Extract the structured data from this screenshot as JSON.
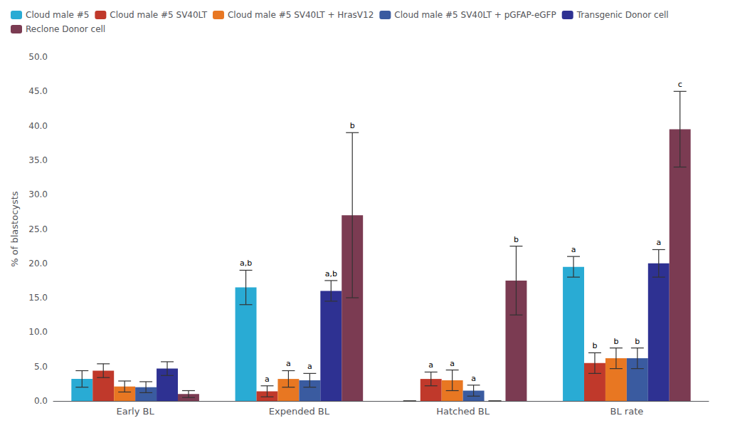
{
  "chart_data": {
    "type": "bar",
    "categories": [
      "Early BL",
      "Expended BL",
      "Hatched BL",
      "BL rate"
    ],
    "series": [
      {
        "name": "Cloud male #5",
        "color": "#29ABD4",
        "values": [
          3.2,
          16.5,
          0.0,
          19.5
        ],
        "errors": [
          1.2,
          2.5,
          0.0,
          1.5
        ],
        "annotations": [
          null,
          "a,b",
          null,
          "a"
        ]
      },
      {
        "name": "Cloud male #5 SV40LT",
        "color": "#C0392B",
        "values": [
          4.4,
          1.4,
          3.2,
          5.5
        ],
        "errors": [
          1.0,
          0.8,
          1.0,
          1.5
        ],
        "annotations": [
          null,
          "a",
          "a",
          "b"
        ]
      },
      {
        "name": "Cloud male #5 SV40LT + HrasV12",
        "color": "#E87722",
        "values": [
          2.1,
          3.2,
          3.0,
          6.2
        ],
        "errors": [
          0.8,
          1.2,
          1.5,
          1.5
        ],
        "annotations": [
          null,
          "a",
          "a",
          "b"
        ]
      },
      {
        "name": "Cloud male #5 SV40LT + pGFAP-eGFP",
        "color": "#3A5BA0",
        "values": [
          2.0,
          3.0,
          1.5,
          6.2
        ],
        "errors": [
          0.8,
          1.0,
          0.8,
          1.5
        ],
        "annotations": [
          null,
          "a",
          "a",
          "b"
        ]
      },
      {
        "name": "Transgenic Donor cell",
        "color": "#2E3192",
        "values": [
          4.7,
          16.0,
          0.0,
          20.0
        ],
        "errors": [
          1.0,
          1.5,
          0.0,
          2.0
        ],
        "annotations": [
          null,
          "a,b",
          null,
          "a"
        ]
      },
      {
        "name": "Reclone Donor cell",
        "color": "#7B3B52",
        "values": [
          1.0,
          27.0,
          17.5,
          39.5
        ],
        "errors": [
          0.5,
          12.0,
          5.0,
          5.5
        ],
        "annotations": [
          null,
          "b",
          "b",
          "c"
        ]
      }
    ],
    "ylabel": "% of blastocysts",
    "ylim": [
      0,
      50
    ],
    "yticks": [
      {
        "value": 0,
        "label": "0.0"
      },
      {
        "value": 5,
        "label": "5.0"
      },
      {
        "value": 10,
        "label": "10.0"
      },
      {
        "value": 15,
        "label": "15.0"
      },
      {
        "value": 20,
        "label": "20.0"
      },
      {
        "value": 25,
        "label": "25.0"
      },
      {
        "value": 30,
        "label": "30.0"
      },
      {
        "value": 35,
        "label": "35.0"
      },
      {
        "value": 40,
        "label": "40.0"
      },
      {
        "value": 45,
        "label": "45.0"
      },
      {
        "value": 50,
        "label": "50.0"
      }
    ],
    "grid": false,
    "legend": "upper left"
  }
}
